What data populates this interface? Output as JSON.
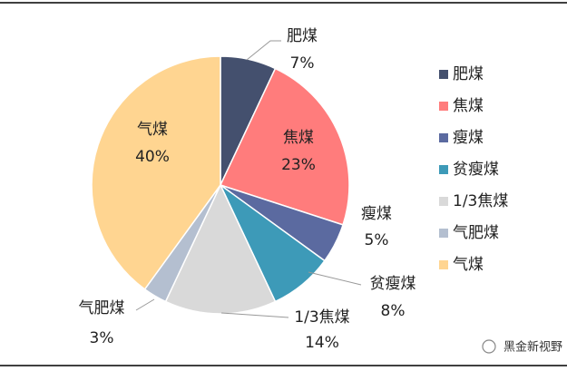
{
  "chart_data": {
    "type": "pie",
    "categories": [
      "肥煤",
      "焦煤",
      "瘦煤",
      "贫瘦煤",
      "1/3焦煤",
      "气肥煤",
      "气煤"
    ],
    "values": [
      7,
      23,
      5,
      8,
      14,
      3,
      40
    ],
    "value_labels": [
      "7%",
      "23%",
      "5%",
      "8%",
      "14%",
      "3%",
      "40%"
    ],
    "colors": [
      "#44506e",
      "#ff7c7c",
      "#5b6aa0",
      "#3d9ab8",
      "#d9d9d9",
      "#b4bfd0",
      "#ffd591"
    ],
    "legend": "right",
    "watermark": "黑金新视野"
  }
}
